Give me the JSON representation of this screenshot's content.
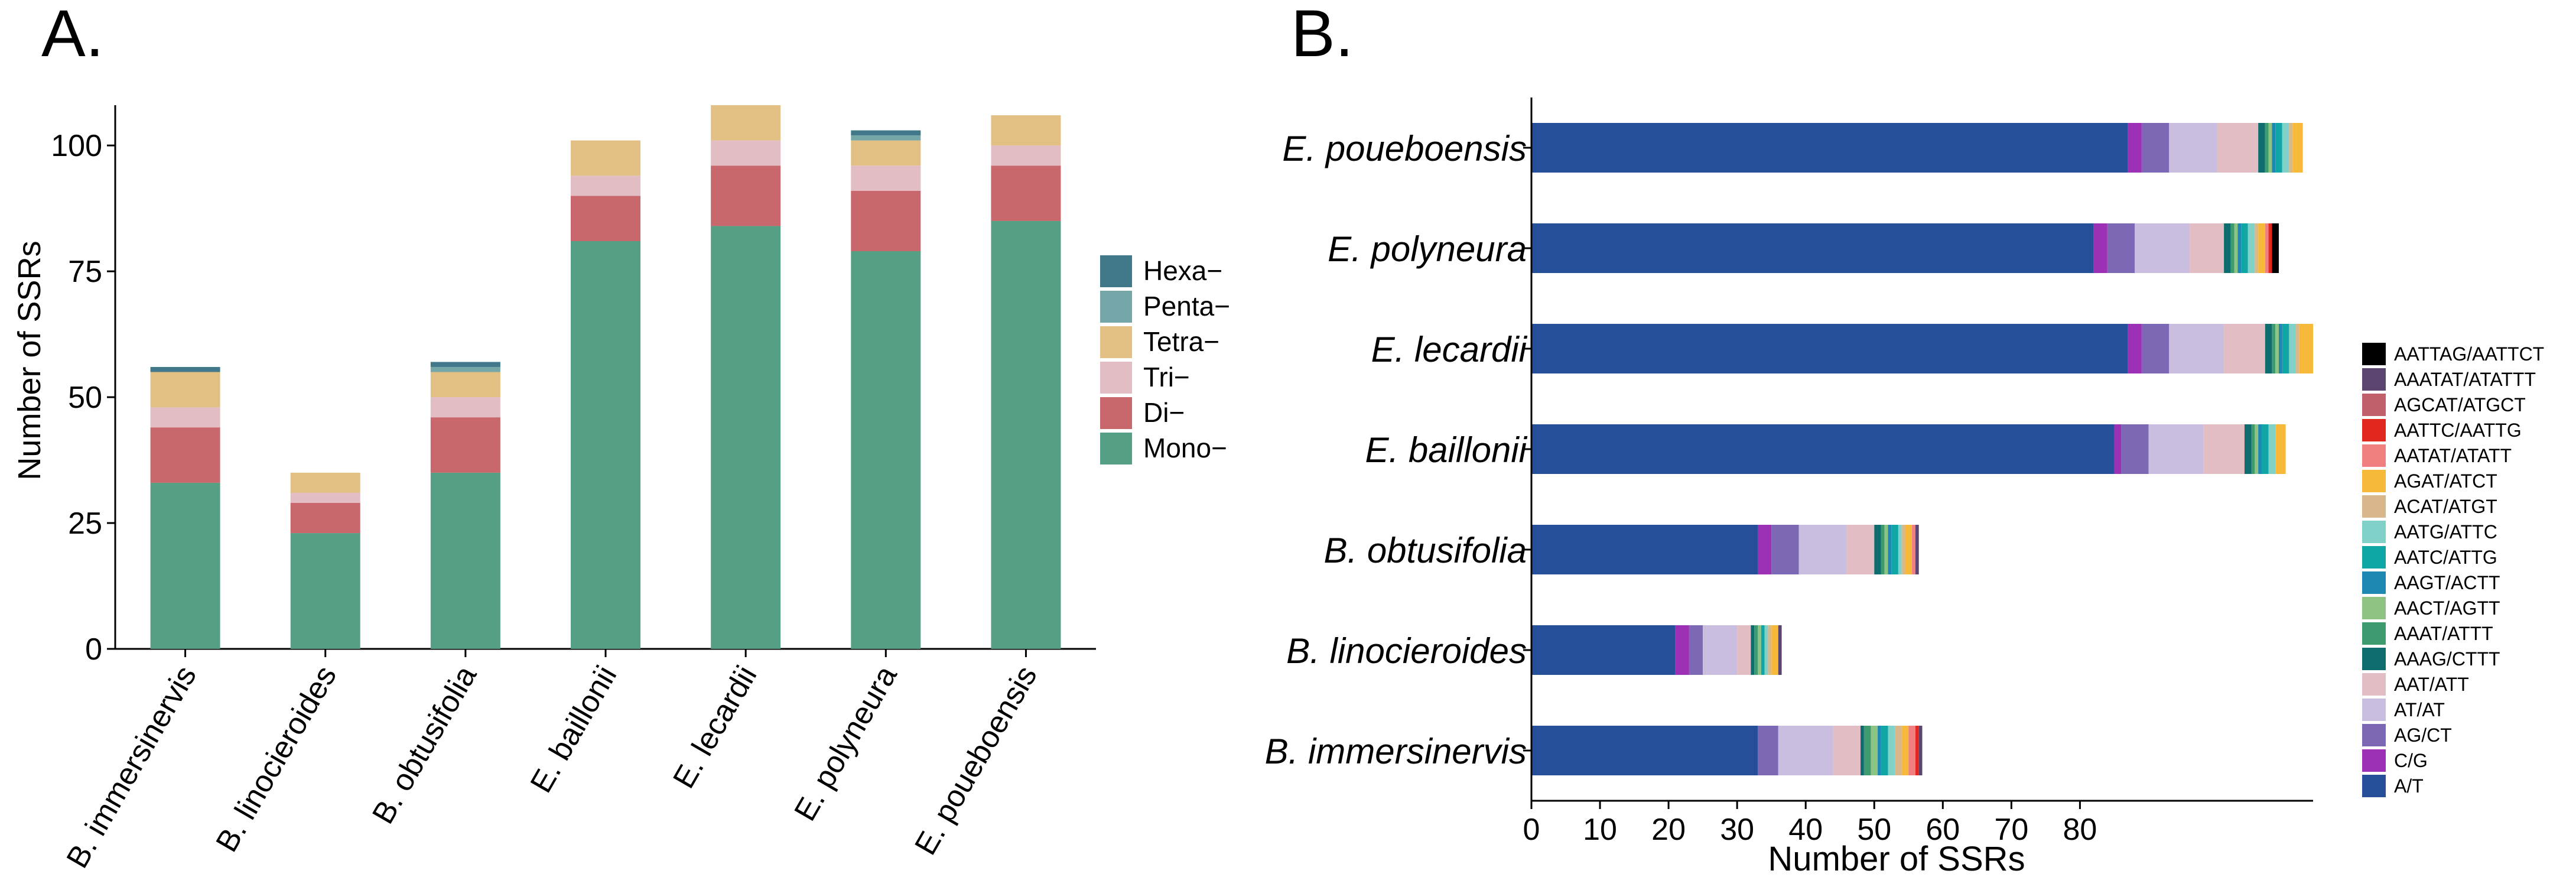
{
  "chart_data": [
    {
      "panel_label": "A.",
      "type": "bar",
      "stacked": true,
      "orientation": "vertical",
      "ylabel": "Number of SSRs",
      "xlabel": "",
      "ylim": [
        0,
        108
      ],
      "yticks": [
        "0",
        "25",
        "50",
        "75",
        "100"
      ],
      "ytick_values": [
        0,
        25,
        50,
        75,
        100
      ],
      "categories": [
        "B. immersinervis",
        "B. linocieroides",
        "B. obtusifolia",
        "E. baillonii",
        "E. lecardii",
        "E. polyneura",
        "E. poueboensis"
      ],
      "legend_position": "right",
      "series": [
        {
          "name": "Mono−",
          "color": "#55a084",
          "values": [
            33,
            23,
            35,
            81,
            84,
            79,
            85
          ]
        },
        {
          "name": "Di−",
          "color": "#c8676c",
          "values": [
            11,
            6,
            11,
            9,
            12,
            12,
            11
          ]
        },
        {
          "name": "Tri−",
          "color": "#e2bdc3",
          "values": [
            4,
            2,
            4,
            4,
            5,
            5,
            4
          ]
        },
        {
          "name": "Tetra−",
          "color": "#e2c084",
          "values": [
            7,
            4,
            5,
            7,
            7,
            5,
            6
          ]
        },
        {
          "name": "Penta−",
          "color": "#76a7a8",
          "values": [
            0,
            0,
            1,
            0,
            0,
            1,
            0
          ]
        },
        {
          "name": "Hexa−",
          "color": "#41788a",
          "values": [
            1,
            0,
            1,
            0,
            0,
            1,
            0
          ]
        }
      ]
    },
    {
      "panel_label": "B.",
      "type": "bar",
      "stacked": true,
      "orientation": "horizontal",
      "xlabel": "Number of SSRs",
      "ylabel": "",
      "xlim": [
        0,
        114
      ],
      "xticks": [
        "0",
        "10",
        "20",
        "30",
        "40",
        "50",
        "60",
        "70",
        "80"
      ],
      "xtick_values": [
        0,
        10,
        20,
        30,
        40,
        50,
        60,
        70,
        80
      ],
      "categories": [
        "E. poueboensis",
        "E. polyneura",
        "E. lecardii",
        "E. baillonii",
        "B. obtusifolia",
        "B. linocieroides",
        "B. immersinervis"
      ],
      "legend_position": "right",
      "series": [
        {
          "name": "A/T",
          "color": "#264f9a",
          "values": [
            87,
            82,
            87,
            85,
            33,
            21,
            33
          ]
        },
        {
          "name": "C/G",
          "color": "#9c31b6",
          "values": [
            2,
            2,
            2,
            1,
            2,
            2,
            0
          ]
        },
        {
          "name": "AG/CT",
          "color": "#7c68b4",
          "values": [
            4,
            4,
            4,
            4,
            4,
            2,
            3
          ]
        },
        {
          "name": "AT/AT",
          "color": "#c9bee0",
          "values": [
            7,
            8,
            8,
            8,
            7,
            5,
            8
          ]
        },
        {
          "name": "AAT/ATT",
          "color": "#e2bdc3",
          "values": [
            6,
            5,
            6,
            6,
            4,
            2,
            4
          ]
        },
        {
          "name": "AAAG/CTTT",
          "color": "#0e6b6e",
          "values": [
            1,
            1,
            1,
            1,
            1,
            0.5,
            0.5
          ]
        },
        {
          "name": "AAAT/ATTT",
          "color": "#3e9a6f",
          "values": [
            0.5,
            0.5,
            0.5,
            0.5,
            0.5,
            0.5,
            1
          ]
        },
        {
          "name": "AACT/AGTT",
          "color": "#8ec383",
          "values": [
            0.5,
            0.5,
            0.5,
            0.5,
            0.5,
            0.5,
            1
          ]
        },
        {
          "name": "AAGT/ACTT",
          "color": "#1e88b2",
          "values": [
            0.5,
            0.5,
            0.5,
            0.5,
            0.5,
            0,
            0.5
          ]
        },
        {
          "name": "AATC/ATTG",
          "color": "#10a6a6",
          "values": [
            1,
            1,
            1,
            1,
            1,
            0.5,
            1
          ]
        },
        {
          "name": "AATG/ATTC",
          "color": "#80d2c8",
          "values": [
            1,
            1,
            1,
            1,
            0.5,
            0.5,
            1
          ]
        },
        {
          "name": "ACAT/ATGT",
          "color": "#d8b88a",
          "values": [
            0.5,
            0.5,
            0.5,
            0,
            0.5,
            0.5,
            1
          ]
        },
        {
          "name": "AGAT/ATCT",
          "color": "#f6b93a",
          "values": [
            1.5,
            1,
            2,
            1.5,
            1,
            1,
            1
          ]
        },
        {
          "name": "AATAT/ATATT",
          "color": "#f08080",
          "values": [
            0,
            0.5,
            0,
            0,
            0.5,
            0,
            1
          ]
        },
        {
          "name": "AATTC/AATTG",
          "color": "#e0281e",
          "values": [
            0,
            0.5,
            0,
            0,
            0,
            0,
            0.5
          ]
        },
        {
          "name": "AGCAT/ATGCT",
          "color": "#c0606a",
          "values": [
            0,
            0,
            0,
            0,
            0,
            0,
            0
          ]
        },
        {
          "name": "AAATAT/ATATTT",
          "color": "#5b4570",
          "values": [
            0,
            0,
            0,
            0,
            0.5,
            0.5,
            0.5
          ]
        },
        {
          "name": "AATTAG/AATTCT",
          "color": "#000000",
          "values": [
            0,
            1,
            0,
            0,
            0,
            0,
            0
          ]
        }
      ]
    }
  ]
}
